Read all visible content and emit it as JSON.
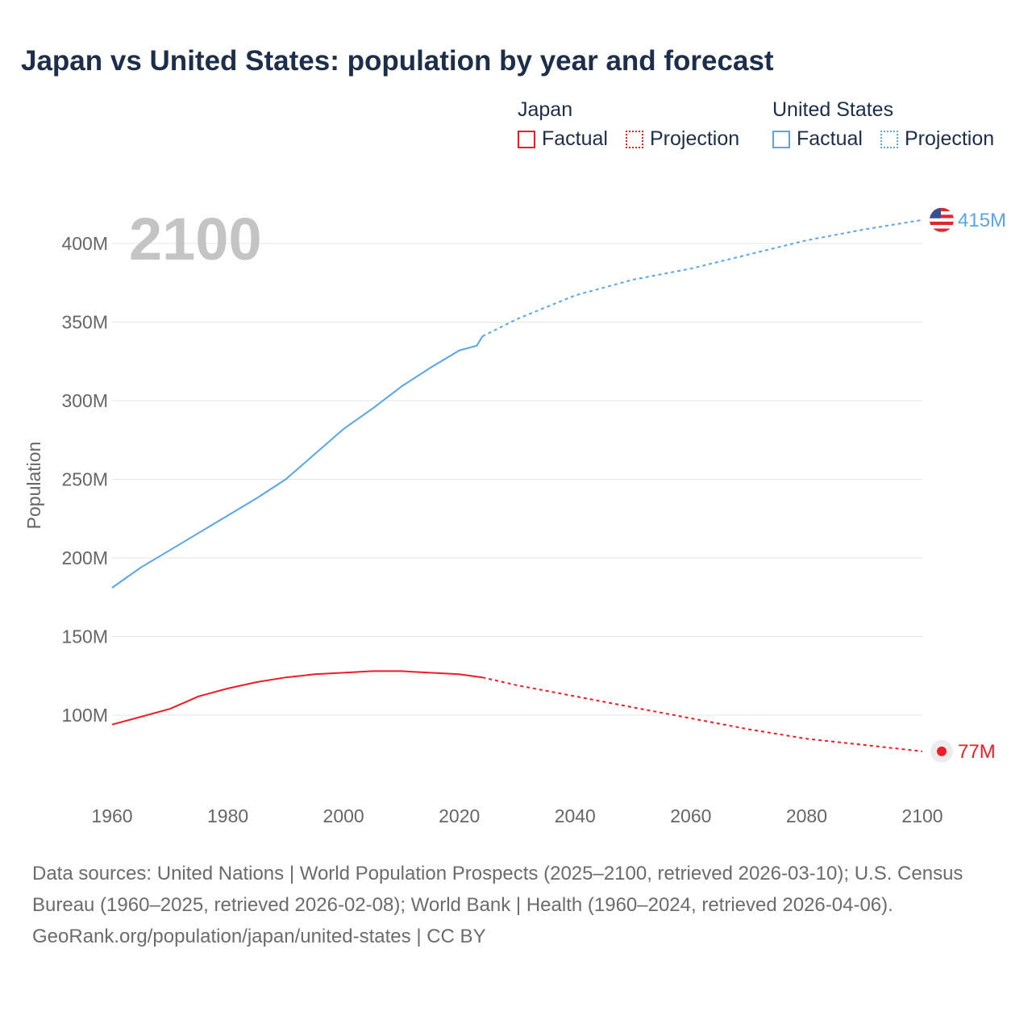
{
  "title": "Japan vs United States: population by year and forecast",
  "legend": {
    "groups": [
      {
        "name": "Japan",
        "color": "#ee1c25",
        "factual": "Factual",
        "projection": "Projection"
      },
      {
        "name": "United States",
        "color": "#5aa5e6",
        "factual": "Factual",
        "projection": "Projection"
      }
    ]
  },
  "year_label": "2100",
  "footer": {
    "sources": "Data sources: United Nations | World Population Prospects (2025–2100, retrieved 2026-03-10); U.S. Census Bureau (1960–2025, retrieved 2026-02-08); World Bank | Health (1960–2024, retrieved 2026-04-06).",
    "credit": "GeoRank.org/population/japan/united-states | CC BY"
  },
  "chart_data": {
    "type": "line",
    "title": "Japan vs United States: population by year and forecast",
    "xlabel": "",
    "ylabel": "Population",
    "xlim": [
      1960,
      2100
    ],
    "ylim": [
      75,
      420
    ],
    "x_ticks": [
      1960,
      1980,
      2000,
      2020,
      2040,
      2060,
      2080,
      2100
    ],
    "y_ticks": [
      100,
      150,
      200,
      250,
      300,
      350,
      400
    ],
    "y_tick_labels": [
      "100M",
      "150M",
      "200M",
      "250M",
      "300M",
      "350M",
      "400M"
    ],
    "grid": true,
    "series": [
      {
        "name": "United States",
        "segment": "Factual",
        "color": "#5aa5e6",
        "x": [
          1960,
          1965,
          1970,
          1975,
          1980,
          1985,
          1990,
          1995,
          2000,
          2005,
          2010,
          2015,
          2020,
          2023,
          2024
        ],
        "values": [
          181,
          194,
          205,
          216,
          227,
          238,
          250,
          266,
          282,
          295,
          309,
          321,
          332,
          335,
          341
        ]
      },
      {
        "name": "United States",
        "segment": "Projection",
        "color": "#5aa5e6",
        "x": [
          2024,
          2030,
          2040,
          2050,
          2060,
          2070,
          2080,
          2090,
          2100
        ],
        "values": [
          341,
          352,
          367,
          377,
          384,
          393,
          402,
          409,
          415
        ]
      },
      {
        "name": "Japan",
        "segment": "Factual",
        "color": "#ee1c25",
        "x": [
          1960,
          1965,
          1970,
          1975,
          1980,
          1985,
          1990,
          1995,
          2000,
          2005,
          2010,
          2015,
          2020,
          2024
        ],
        "values": [
          94,
          99,
          104,
          112,
          117,
          121,
          124,
          126,
          127,
          128,
          128,
          127,
          126,
          124
        ]
      },
      {
        "name": "Japan",
        "segment": "Projection",
        "color": "#ee1c25",
        "x": [
          2024,
          2030,
          2040,
          2050,
          2060,
          2070,
          2080,
          2090,
          2100
        ],
        "values": [
          124,
          119,
          112,
          105,
          98,
          91,
          85,
          81,
          77
        ]
      }
    ],
    "end_labels": [
      {
        "name": "United States",
        "label": "415M",
        "value": 415,
        "color": "#5aa5e6"
      },
      {
        "name": "Japan",
        "label": "77M",
        "value": 77,
        "color": "#ee1c25"
      }
    ]
  }
}
